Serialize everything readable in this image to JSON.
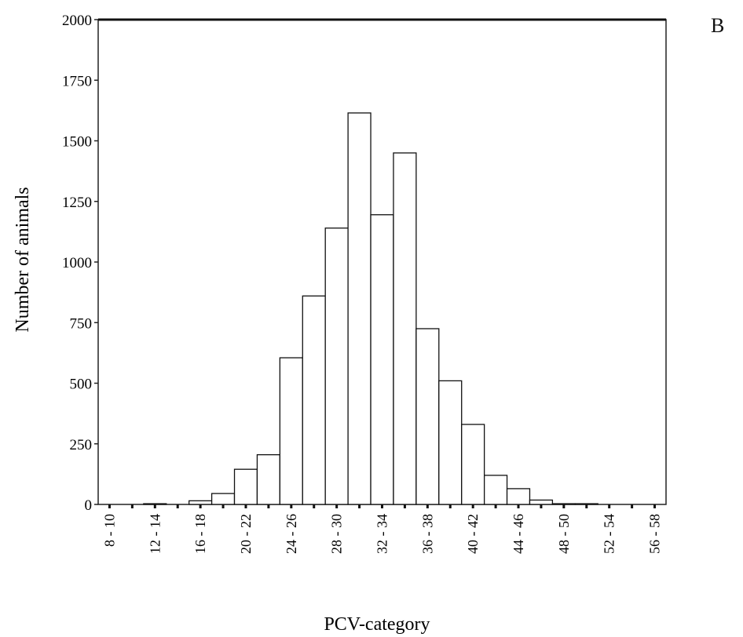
{
  "panel_label": "B",
  "chart_data": {
    "type": "bar",
    "title": "",
    "xlabel": "PCV-category",
    "ylabel": "Number of animals",
    "ylim": [
      0,
      2000
    ],
    "yticks": [
      0,
      250,
      500,
      750,
      1000,
      1250,
      1500,
      1750,
      2000
    ],
    "categories": [
      "8 - 10",
      "10 - 12",
      "12 - 14",
      "14 - 16",
      "16 - 18",
      "18 - 20",
      "20 - 22",
      "22 - 24",
      "24 - 26",
      "26 - 28",
      "28 - 30",
      "30 - 32",
      "32 - 34",
      "34 - 36",
      "36 - 38",
      "38 - 40",
      "40 - 42",
      "42 - 44",
      "44 - 46",
      "46 - 48",
      "48 - 50",
      "50 - 52",
      "52 - 54",
      "54 - 56",
      "56 - 58"
    ],
    "tick_labels": [
      "8 - 10",
      "",
      "12 - 14",
      "",
      "16 - 18",
      "",
      "20 - 22",
      "",
      "24 - 26",
      "",
      "28 - 30",
      "",
      "32 - 34",
      "",
      "36 - 38",
      "",
      "40 - 42",
      "",
      "44 - 46",
      "",
      "48 - 50",
      "",
      "52 - 54",
      "",
      "56 - 58"
    ],
    "values": [
      0,
      0,
      3,
      0,
      15,
      45,
      145,
      205,
      605,
      860,
      1140,
      1615,
      1195,
      1450,
      725,
      510,
      330,
      120,
      65,
      18,
      3,
      3,
      0,
      0,
      0
    ],
    "grid": false,
    "legend": "none"
  }
}
